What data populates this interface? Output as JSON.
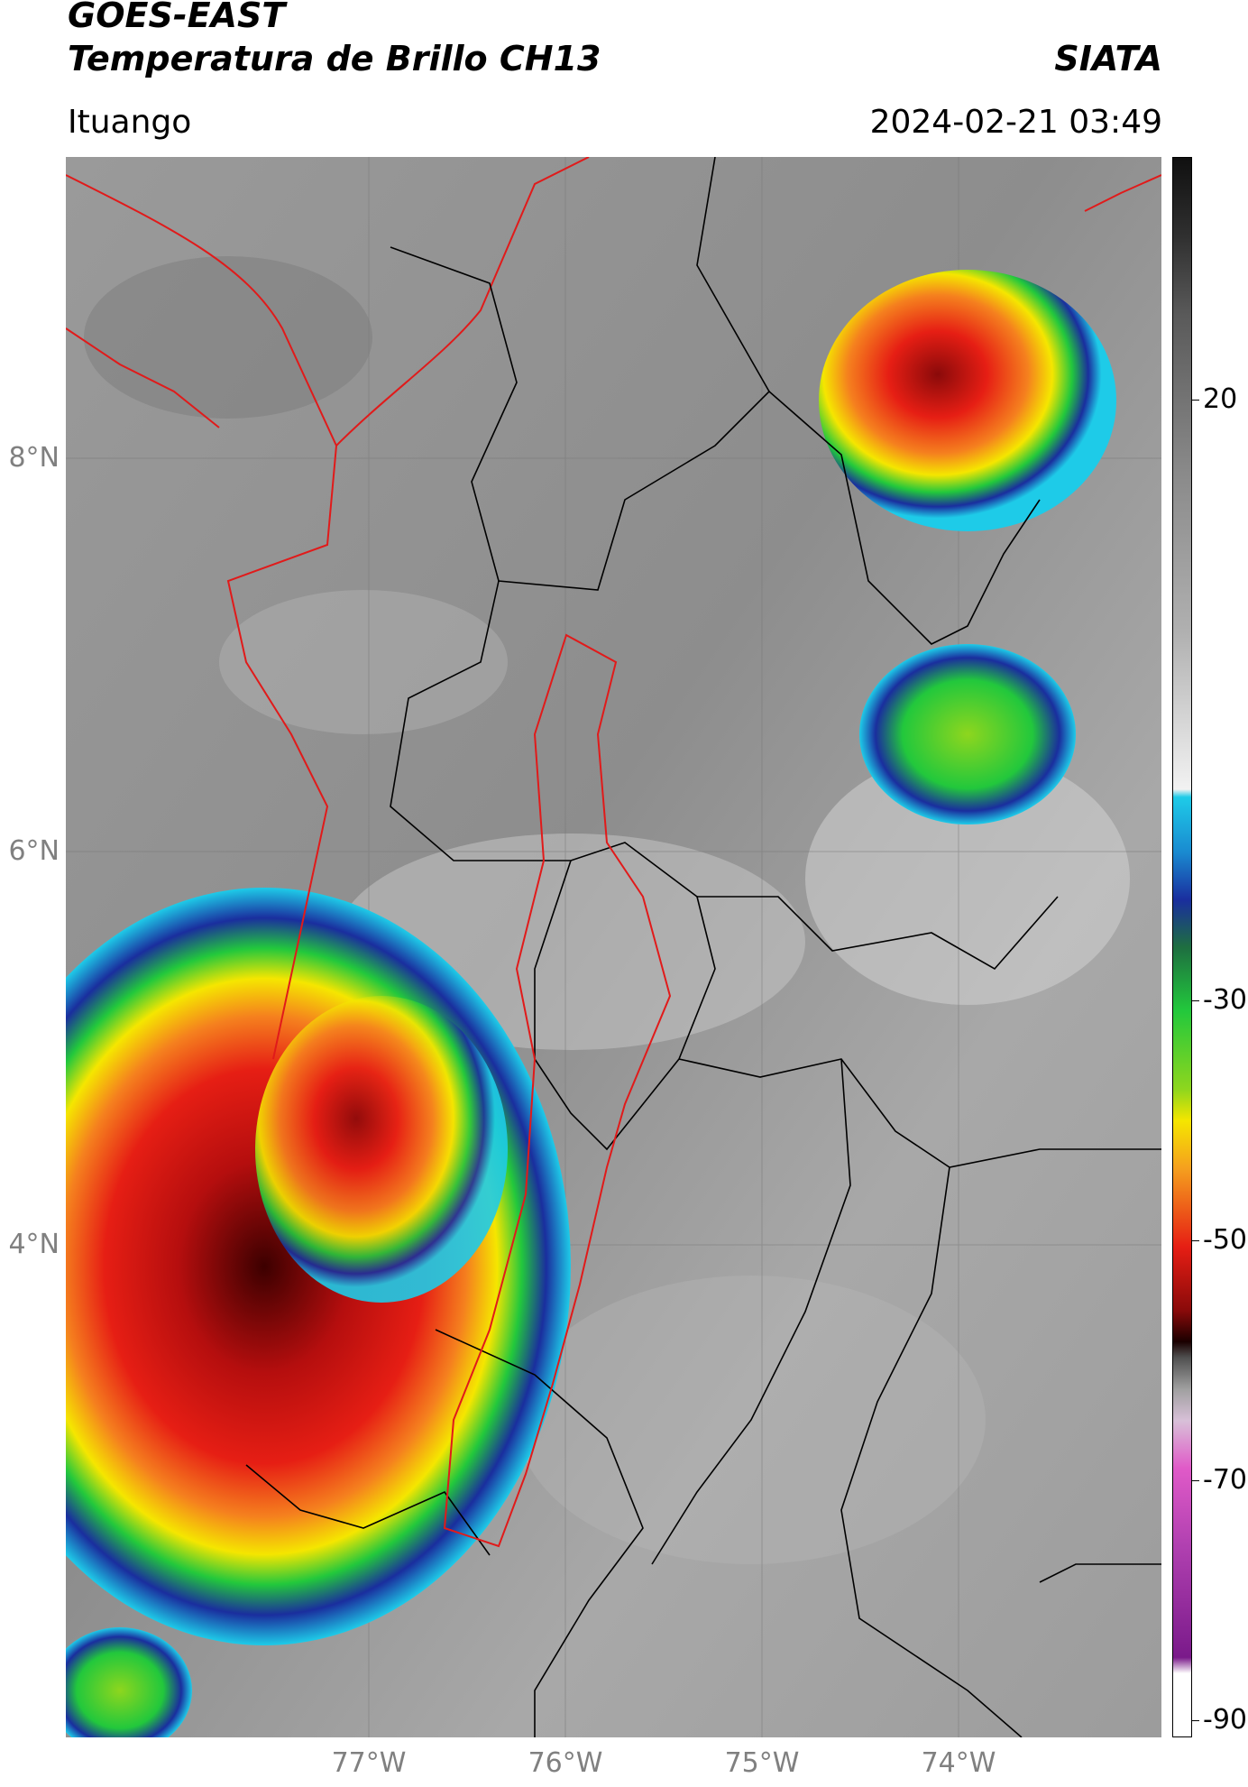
{
  "header": {
    "satellite": "GOES-EAST",
    "product": "Temperatura de Brillo CH13",
    "brand": "SIATA",
    "region": "Ituango",
    "timestamp": "2024-02-21 03:49"
  },
  "axes": {
    "lat_labels": [
      "8°N",
      "6°N",
      "4°N"
    ],
    "lon_labels": [
      "77°W",
      "76°W",
      "75°W",
      "74°W"
    ]
  },
  "colorbar": {
    "tick_labels": [
      "20",
      "-30",
      "-50",
      "-70",
      "-90"
    ],
    "colors": {
      "warm_grey": "#8a8a8a",
      "cyan": "#1ecbe8",
      "blue": "#1a2e9e",
      "green": "#22c83c",
      "yellow": "#f5e600",
      "orange": "#f5801e",
      "red": "#e61e14",
      "dark_red": "#3c0000",
      "pink": "#e05ac8",
      "purple": "#7a1a8a"
    }
  },
  "map_colors": {
    "country_border": "#e11a1a",
    "dept_border": "#000000",
    "basin_outline": "#e11a1a"
  }
}
